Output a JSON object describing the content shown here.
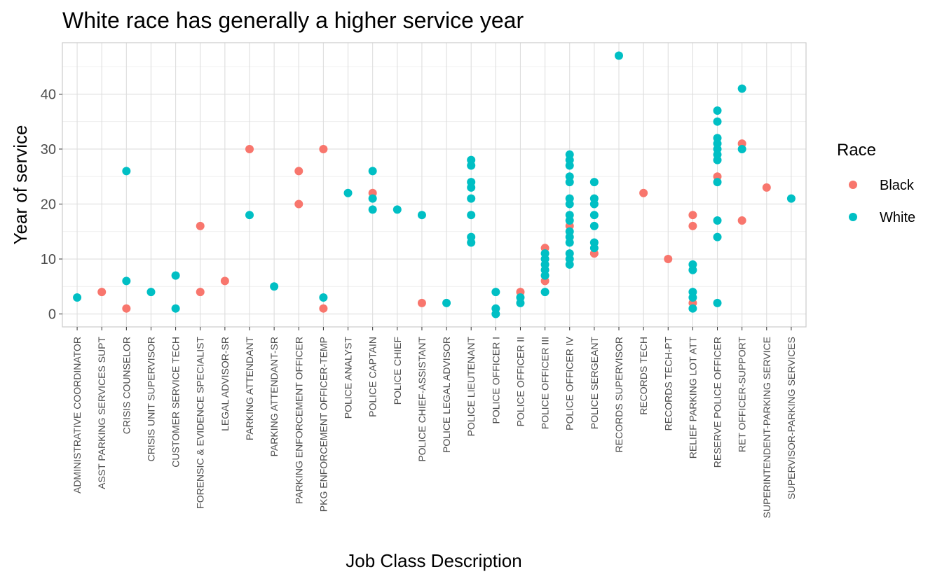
{
  "chart_data": {
    "type": "scatter",
    "title": "White race has generally a higher service year",
    "xlabel": "Job Class Description",
    "ylabel": "Year of service",
    "ylim": [
      -2.35,
      49.35
    ],
    "yticks": [
      0,
      10,
      20,
      30,
      40
    ],
    "grid": true,
    "legend": {
      "title": "Race",
      "position": "right"
    },
    "categories": [
      "ADMINISTRATIVE COORDINATOR",
      "ASST PARKING SERVICES SUPT",
      "CRISIS COUNSELOR",
      "CRISIS UNIT SUPERVISOR",
      "CUSTOMER SERVICE TECH",
      "FORENSIC & EVIDENCE SPECIALIST",
      "LEGAL ADVISOR-SR",
      "PARKING ATTENDANT",
      "PARKING ATTENDANT-SR",
      "PARKING ENFORCEMENT OFFICER",
      "PKG ENFORCEMENT OFFICER-TEMP",
      "POLICE ANALYST",
      "POLICE CAPTAIN",
      "POLICE CHIEF",
      "POLICE CHIEF-ASSISTANT",
      "POLICE LEGAL ADVISOR",
      "POLICE LIEUTENANT",
      "POLICE OFFICER I",
      "POLICE OFFICER II",
      "POLICE OFFICER III",
      "POLICE OFFICER IV",
      "POLICE SERGEANT",
      "RECORDS SUPERVISOR",
      "RECORDS TECH",
      "RECORDS TECH-PT",
      "RELIEF PARKING LOT ATT",
      "RESERVE POLICE OFFICER",
      "RET OFFICER-SUPPORT",
      "SUPERINTENDENT-PARKING SERVICE",
      "SUPERVISOR-PARKING SERVICES"
    ],
    "series": [
      {
        "name": "Black",
        "color": "#F8766D",
        "points": [
          [
            "ASST PARKING SERVICES SUPT",
            4
          ],
          [
            "CRISIS COUNSELOR",
            1
          ],
          [
            "FORENSIC & EVIDENCE SPECIALIST",
            16
          ],
          [
            "FORENSIC & EVIDENCE SPECIALIST",
            4
          ],
          [
            "LEGAL ADVISOR-SR",
            6
          ],
          [
            "PARKING ATTENDANT",
            30
          ],
          [
            "PARKING ENFORCEMENT OFFICER",
            26
          ],
          [
            "PARKING ENFORCEMENT OFFICER",
            20
          ],
          [
            "PKG ENFORCEMENT OFFICER-TEMP",
            30
          ],
          [
            "PKG ENFORCEMENT OFFICER-TEMP",
            1
          ],
          [
            "POLICE CAPTAIN",
            22
          ],
          [
            "POLICE CHIEF-ASSISTANT",
            2
          ],
          [
            "POLICE OFFICER II",
            4
          ],
          [
            "POLICE OFFICER III",
            12
          ],
          [
            "POLICE OFFICER III",
            6
          ],
          [
            "POLICE OFFICER IV",
            16
          ],
          [
            "POLICE SERGEANT",
            11
          ],
          [
            "RECORDS TECH",
            22
          ],
          [
            "RECORDS TECH-PT",
            10
          ],
          [
            "RELIEF PARKING LOT ATT",
            18
          ],
          [
            "RELIEF PARKING LOT ATT",
            16
          ],
          [
            "RELIEF PARKING LOT ATT",
            2
          ],
          [
            "RESERVE POLICE OFFICER",
            25
          ],
          [
            "RET OFFICER-SUPPORT",
            31
          ],
          [
            "RET OFFICER-SUPPORT",
            17
          ],
          [
            "SUPERINTENDENT-PARKING SERVICE",
            23
          ]
        ]
      },
      {
        "name": "White",
        "color": "#00BFC4",
        "points": [
          [
            "ADMINISTRATIVE COORDINATOR",
            3
          ],
          [
            "CRISIS COUNSELOR",
            26
          ],
          [
            "CRISIS COUNSELOR",
            6
          ],
          [
            "CRISIS UNIT SUPERVISOR",
            4
          ],
          [
            "CUSTOMER SERVICE TECH",
            7
          ],
          [
            "CUSTOMER SERVICE TECH",
            1
          ],
          [
            "PARKING ATTENDANT",
            18
          ],
          [
            "PARKING ATTENDANT-SR",
            5
          ],
          [
            "PKG ENFORCEMENT OFFICER-TEMP",
            3
          ],
          [
            "POLICE ANALYST",
            22
          ],
          [
            "POLICE CAPTAIN",
            26
          ],
          [
            "POLICE CAPTAIN",
            21
          ],
          [
            "POLICE CAPTAIN",
            19
          ],
          [
            "POLICE CHIEF",
            19
          ],
          [
            "POLICE CHIEF-ASSISTANT",
            18
          ],
          [
            "POLICE LEGAL ADVISOR",
            2
          ],
          [
            "POLICE LIEUTENANT",
            28
          ],
          [
            "POLICE LIEUTENANT",
            27
          ],
          [
            "POLICE LIEUTENANT",
            24
          ],
          [
            "POLICE LIEUTENANT",
            23
          ],
          [
            "POLICE LIEUTENANT",
            21
          ],
          [
            "POLICE LIEUTENANT",
            18
          ],
          [
            "POLICE LIEUTENANT",
            14
          ],
          [
            "POLICE LIEUTENANT",
            13
          ],
          [
            "POLICE OFFICER I",
            4
          ],
          [
            "POLICE OFFICER I",
            1
          ],
          [
            "POLICE OFFICER I",
            0
          ],
          [
            "POLICE OFFICER II",
            3
          ],
          [
            "POLICE OFFICER II",
            2
          ],
          [
            "POLICE OFFICER III",
            11
          ],
          [
            "POLICE OFFICER III",
            10
          ],
          [
            "POLICE OFFICER III",
            9
          ],
          [
            "POLICE OFFICER III",
            8
          ],
          [
            "POLICE OFFICER III",
            7
          ],
          [
            "POLICE OFFICER III",
            4
          ],
          [
            "POLICE OFFICER IV",
            29
          ],
          [
            "POLICE OFFICER IV",
            28
          ],
          [
            "POLICE OFFICER IV",
            27
          ],
          [
            "POLICE OFFICER IV",
            25
          ],
          [
            "POLICE OFFICER IV",
            24
          ],
          [
            "POLICE OFFICER IV",
            21
          ],
          [
            "POLICE OFFICER IV",
            20
          ],
          [
            "POLICE OFFICER IV",
            18
          ],
          [
            "POLICE OFFICER IV",
            17
          ],
          [
            "POLICE OFFICER IV",
            15
          ],
          [
            "POLICE OFFICER IV",
            14
          ],
          [
            "POLICE OFFICER IV",
            13
          ],
          [
            "POLICE OFFICER IV",
            11
          ],
          [
            "POLICE OFFICER IV",
            10
          ],
          [
            "POLICE OFFICER IV",
            9
          ],
          [
            "POLICE SERGEANT",
            24
          ],
          [
            "POLICE SERGEANT",
            21
          ],
          [
            "POLICE SERGEANT",
            20
          ],
          [
            "POLICE SERGEANT",
            18
          ],
          [
            "POLICE SERGEANT",
            16
          ],
          [
            "POLICE SERGEANT",
            13
          ],
          [
            "POLICE SERGEANT",
            12
          ],
          [
            "RECORDS SUPERVISOR",
            47
          ],
          [
            "RELIEF PARKING LOT ATT",
            9
          ],
          [
            "RELIEF PARKING LOT ATT",
            8
          ],
          [
            "RELIEF PARKING LOT ATT",
            4
          ],
          [
            "RELIEF PARKING LOT ATT",
            3
          ],
          [
            "RELIEF PARKING LOT ATT",
            1
          ],
          [
            "RESERVE POLICE OFFICER",
            37
          ],
          [
            "RESERVE POLICE OFFICER",
            35
          ],
          [
            "RESERVE POLICE OFFICER",
            32
          ],
          [
            "RESERVE POLICE OFFICER",
            31
          ],
          [
            "RESERVE POLICE OFFICER",
            30
          ],
          [
            "RESERVE POLICE OFFICER",
            29
          ],
          [
            "RESERVE POLICE OFFICER",
            28
          ],
          [
            "RESERVE POLICE OFFICER",
            24
          ],
          [
            "RESERVE POLICE OFFICER",
            17
          ],
          [
            "RESERVE POLICE OFFICER",
            14
          ],
          [
            "RESERVE POLICE OFFICER",
            2
          ],
          [
            "RET OFFICER-SUPPORT",
            41
          ],
          [
            "RET OFFICER-SUPPORT",
            30
          ],
          [
            "SUPERVISOR-PARKING SERVICES",
            21
          ]
        ]
      }
    ]
  }
}
